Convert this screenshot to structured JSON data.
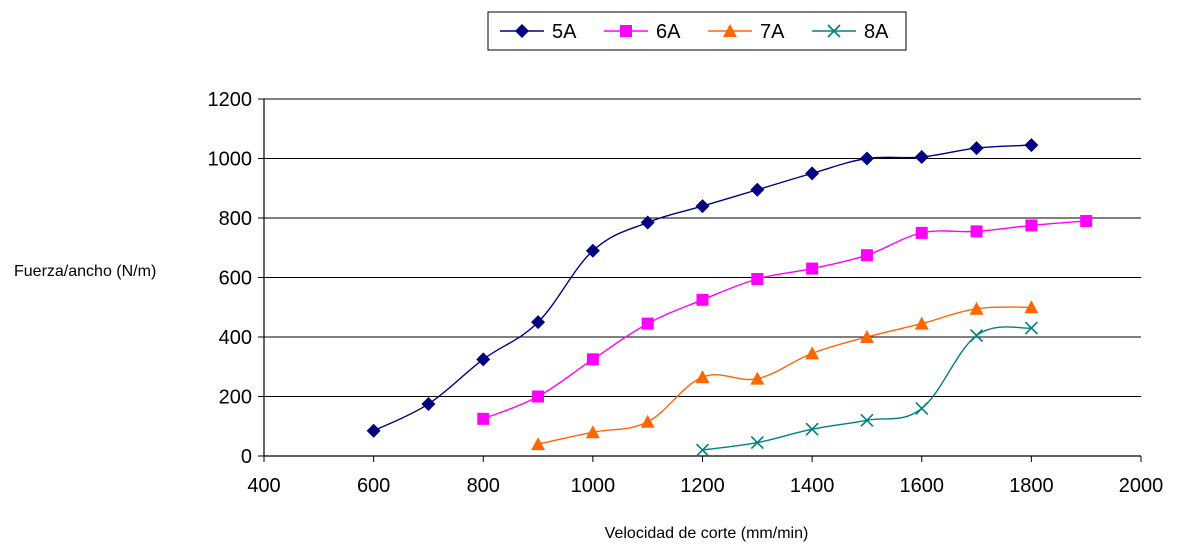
{
  "chart_data": {
    "type": "line",
    "title": "",
    "xlabel": "Velocidad de corte (mm/min)",
    "ylabel": "Fuerza/ancho (N/m)",
    "xlim": [
      400,
      2000
    ],
    "ylim": [
      0,
      1200
    ],
    "xticks": [
      400,
      600,
      800,
      1000,
      1200,
      1400,
      1600,
      1800,
      2000
    ],
    "yticks": [
      0,
      200,
      400,
      600,
      800,
      1000,
      1200
    ],
    "grid": "horizontal",
    "legend_position": "top",
    "series": [
      {
        "name": "5A",
        "color": "#000080",
        "marker": "diamond",
        "x": [
          600,
          700,
          800,
          900,
          1000,
          1100,
          1200,
          1300,
          1400,
          1500,
          1600,
          1700,
          1800
        ],
        "y": [
          85,
          175,
          325,
          450,
          690,
          785,
          840,
          895,
          950,
          1000,
          1005,
          1035,
          1045
        ]
      },
      {
        "name": "6A",
        "color": "#FF00FF",
        "marker": "square",
        "x": [
          800,
          900,
          1000,
          1100,
          1200,
          1300,
          1400,
          1500,
          1600,
          1700,
          1800,
          1900
        ],
        "y": [
          125,
          200,
          325,
          445,
          525,
          595,
          630,
          675,
          750,
          755,
          775,
          790
        ]
      },
      {
        "name": "7A",
        "color": "#FF6600",
        "marker": "triangle",
        "x": [
          900,
          1000,
          1100,
          1200,
          1300,
          1400,
          1500,
          1600,
          1700,
          1800
        ],
        "y": [
          40,
          80,
          115,
          265,
          260,
          345,
          400,
          445,
          495,
          500
        ]
      },
      {
        "name": "8A",
        "color": "#008080",
        "marker": "x",
        "x": [
          1200,
          1300,
          1400,
          1500,
          1600,
          1700,
          1800
        ],
        "y": [
          20,
          45,
          90,
          120,
          160,
          405,
          430
        ]
      }
    ]
  }
}
